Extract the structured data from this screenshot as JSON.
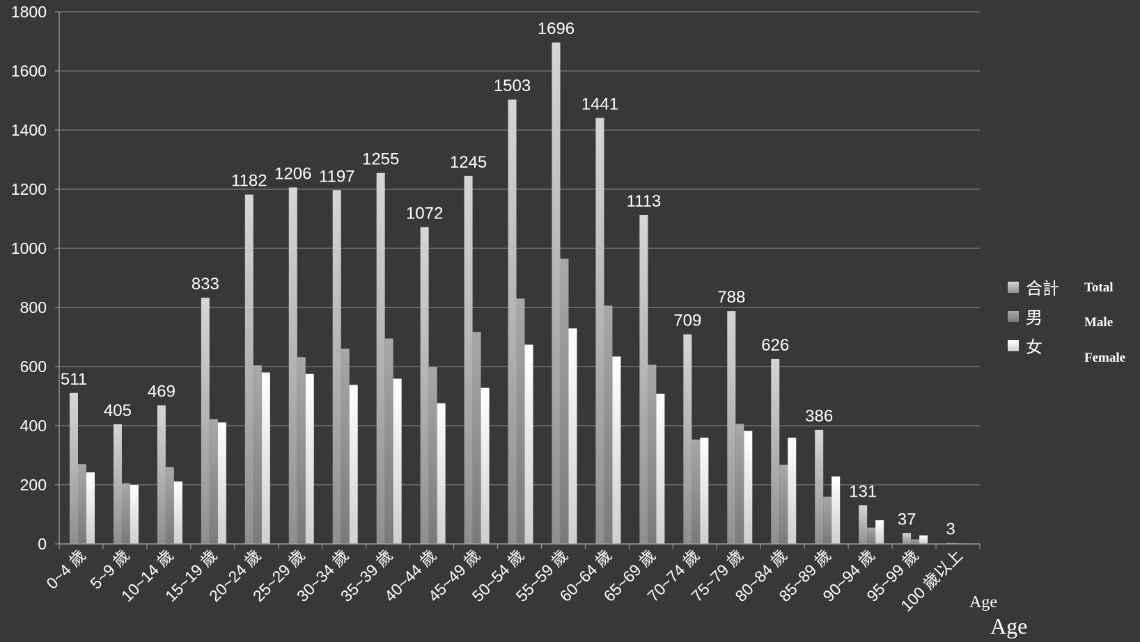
{
  "chart_data": {
    "type": "bar",
    "categories": [
      "0~4 歲",
      "5~9 歲",
      "10~14 歲",
      "15~19 歲",
      "20~24 歲",
      "25~29 歲",
      "30~34 歲",
      "35~39 歲",
      "40~44 歲",
      "45~49 歲",
      "50~54 歲",
      "55~59 歲",
      "60~64 歲",
      "65~69 歲",
      "70~74 歲",
      "75~79 歲",
      "80~84 歲",
      "85~89 歲",
      "90~94 歲",
      "95~99 歲",
      "100 歲以上"
    ],
    "series": [
      {
        "name": "合計",
        "name_en": "Total",
        "color_top": "#d6d6d6",
        "color_bottom": "#8f8f8f",
        "values": [
          511,
          405,
          469,
          833,
          1182,
          1206,
          1197,
          1255,
          1072,
          1245,
          1503,
          1696,
          1441,
          1113,
          709,
          788,
          626,
          386,
          131,
          37,
          3
        ]
      },
      {
        "name": "男",
        "name_en": "Male",
        "color_top": "#a8a8a8",
        "color_bottom": "#7a7a7a",
        "values": [
          270,
          205,
          260,
          422,
          604,
          632,
          660,
          695,
          598,
          717,
          830,
          965,
          806,
          606,
          353,
          406,
          268,
          160,
          55,
          15,
          2
        ]
      },
      {
        "name": "女",
        "name_en": "Female",
        "color_top": "#ffffff",
        "color_bottom": "#cfcfcf",
        "values": [
          242,
          200,
          211,
          411,
          580,
          575,
          538,
          559,
          476,
          528,
          674,
          729,
          634,
          508,
          359,
          382,
          359,
          228,
          80,
          29,
          1
        ]
      }
    ],
    "data_labels_series": 0,
    "ylim": [
      0,
      1800
    ],
    "yticks": [
      0,
      200,
      400,
      600,
      800,
      1000,
      1200,
      1400,
      1600,
      1800
    ],
    "xlabel": "Age",
    "xlabel_alt": "Age",
    "grid": true,
    "legend_position": "right"
  },
  "colors": {
    "background": "#383838",
    "gridline": "#7a7a7a",
    "axis": "#9a9a9a",
    "text": "#ffffff"
  }
}
